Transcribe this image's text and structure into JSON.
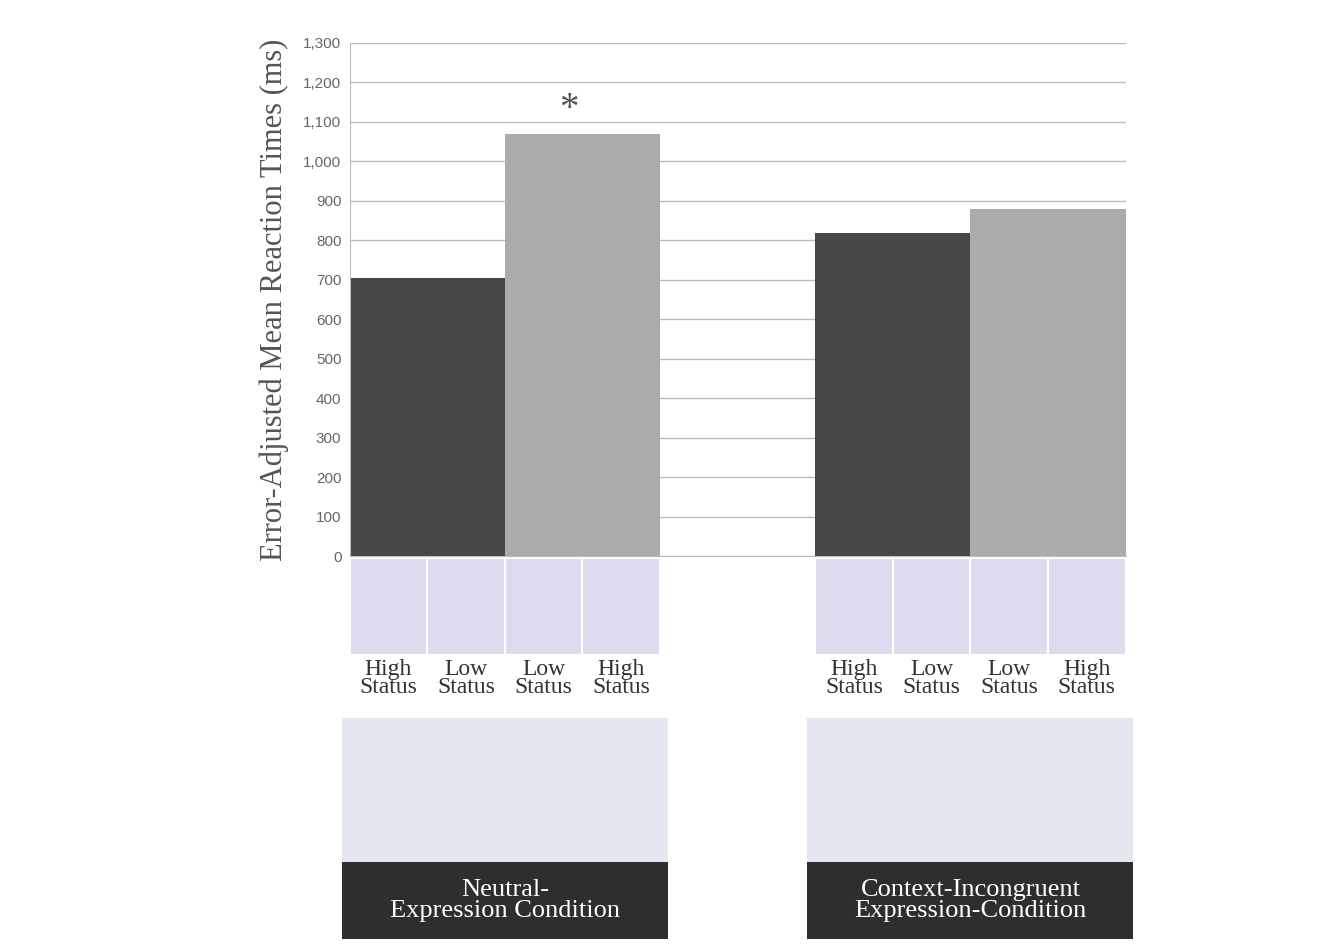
{
  "chart_data": {
    "type": "bar",
    "y_label": "Error-Adjusted Mean Reaction Times (ms)",
    "categories": [
      [
        "High Status",
        "Low Status"
      ],
      [
        "Low Status",
        "High Status"
      ],
      null,
      [
        "High Status",
        "Low Status"
      ],
      [
        "Low Status",
        "High Status"
      ]
    ],
    "values": [
      705,
      1070,
      null,
      818,
      880
    ],
    "colors": [
      "#474747",
      "#ababab",
      null,
      "#474747",
      "#ababab"
    ],
    "groups": [
      {
        "label": "Neutral-\nExpression Condition",
        "categories": [
          0,
          1
        ]
      },
      {
        "label": "Context-Incongruent\nExpression-Condition",
        "categories": [
          3,
          4
        ]
      }
    ],
    "annotations": [
      {
        "text": "*",
        "category": 1
      }
    ],
    "ylim": [
      0,
      1300
    ],
    "yticks": [
      0,
      100,
      200,
      300,
      400,
      500,
      600,
      700,
      800,
      900,
      {
        "value": 1000,
        "label": "1,000"
      },
      {
        "value": 1100,
        "label": "1,100"
      },
      {
        "value": 1200,
        "label": "1,200"
      },
      {
        "value": 1300,
        "label": "1,300"
      }
    ],
    "grid": true,
    "tick_labels": "y"
  }
}
